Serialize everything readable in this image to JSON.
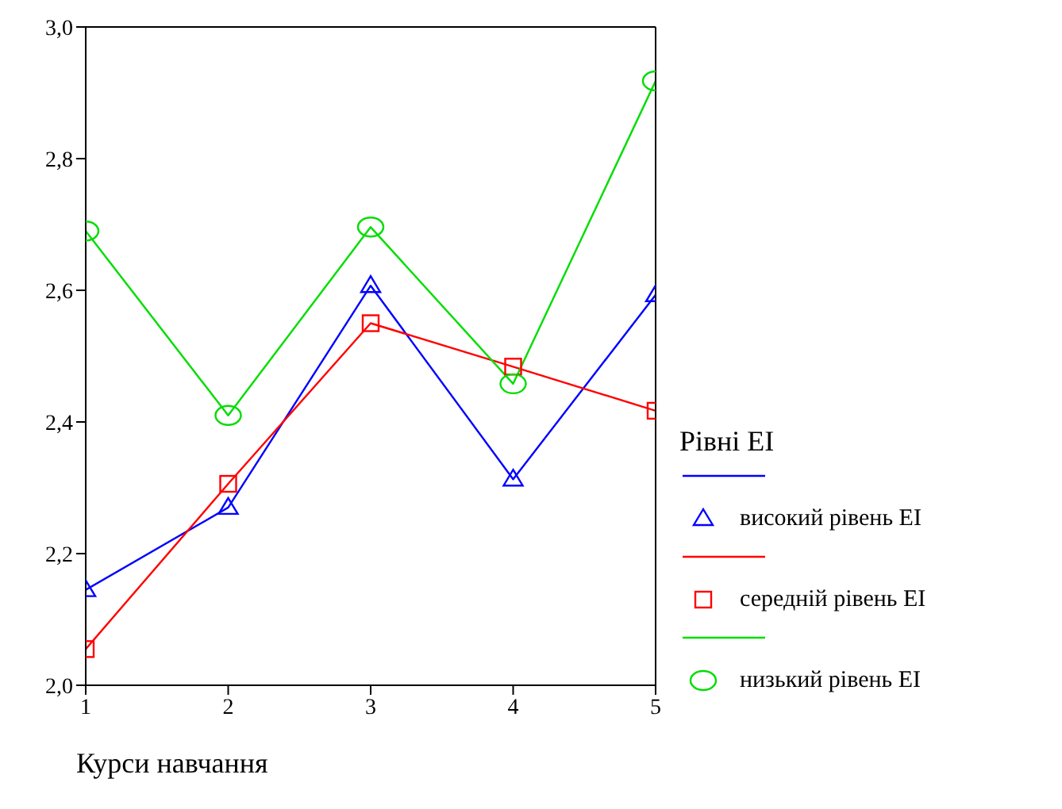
{
  "chart_data": {
    "type": "line",
    "xlabel": "Курси навчання",
    "legend_title": "Рівні ЕІ",
    "x": [
      1,
      2,
      3,
      4,
      5
    ],
    "series": [
      {
        "name": "високий рівень ЕІ",
        "color": "#0000ff",
        "marker": "triangle",
        "values": [
          2.145,
          2.27,
          2.607,
          2.313,
          2.593
        ]
      },
      {
        "name": "середній рівень ЕІ",
        "color": "#ff0000",
        "marker": "square",
        "values": [
          2.055,
          2.306,
          2.55,
          2.484,
          2.417
        ]
      },
      {
        "name": "низький рівень ЕІ",
        "color": "#00dd00",
        "marker": "circle",
        "values": [
          2.69,
          2.41,
          2.696,
          2.458,
          2.918
        ]
      }
    ],
    "xlim": [
      1,
      5
    ],
    "xticks": [
      1,
      2,
      3,
      4,
      5
    ],
    "ylim": [
      2.0,
      3.0
    ],
    "yticks": [
      {
        "value": 2.0,
        "label": "2,0"
      },
      {
        "value": 2.2,
        "label": "2,2"
      },
      {
        "value": 2.4,
        "label": "2,4"
      },
      {
        "value": 2.6,
        "label": "2,6"
      },
      {
        "value": 2.8,
        "label": "2,8"
      },
      {
        "value": 3.0,
        "label": "3,0"
      }
    ],
    "grid": false,
    "legend": "right",
    "line_style": "solid"
  }
}
